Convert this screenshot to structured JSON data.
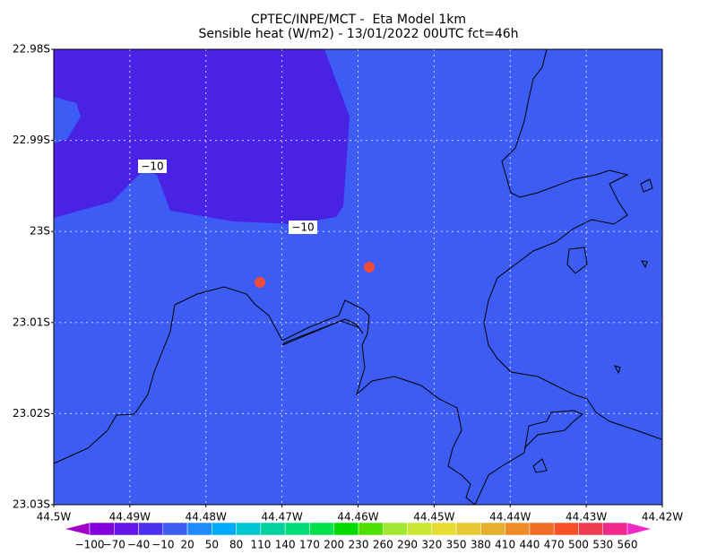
{
  "header": {
    "title_lines": [
      "CPTEC/INPE/MCT -  Eta Model 1km",
      "Sensible heat (W/m2) - 13/01/2022 00UTC fct=46h"
    ]
  },
  "map": {
    "y_labels": [
      "22.98S",
      "22.99S",
      "23S",
      "23.01S",
      "23.02S",
      "23.03S"
    ],
    "x_labels": [
      "44.5W",
      "44.49W",
      "44.48W",
      "44.47W",
      "44.46W",
      "44.45W",
      "44.44W",
      "44.43W",
      "44.42W"
    ],
    "contour_labels": [
      "−10",
      "−10"
    ]
  },
  "colorbar": {
    "labels": [
      "−100",
      "−70",
      "−40",
      "−10",
      "20",
      "50",
      "80",
      "110",
      "140",
      "170",
      "200",
      "230",
      "260",
      "290",
      "320",
      "350",
      "380",
      "410",
      "440",
      "470",
      "500",
      "530",
      "560"
    ],
    "colors": [
      "#a000c8",
      "#8200dc",
      "#6414e6",
      "#4b32f0",
      "#3c5cf4",
      "#1e8cff",
      "#00aaff",
      "#00c8d2",
      "#00d2a0",
      "#00dc78",
      "#00e04b",
      "#00dc00",
      "#50e000",
      "#a0e632",
      "#c8e632",
      "#e6dc32",
      "#e6c832",
      "#e6af2d",
      "#f08c28",
      "#f06e28",
      "#fa5028",
      "#f03c50",
      "#f0288c",
      "#f028c8"
    ]
  }
}
